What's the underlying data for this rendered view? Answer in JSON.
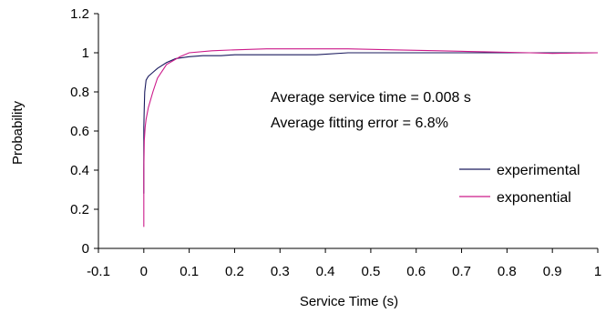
{
  "chart_data": {
    "type": "line",
    "title": "",
    "xlabel": "Service Time (s)",
    "ylabel": "Probability",
    "xlim": [
      -0.1,
      1.0
    ],
    "ylim": [
      0,
      1.2
    ],
    "x_ticks": [
      "-0.1",
      "0",
      "0.1",
      "0.2",
      "0.3",
      "0.4",
      "0.5",
      "0.6",
      "0.7",
      "0.8",
      "0.9",
      "1"
    ],
    "y_ticks": [
      "0",
      "0.2",
      "0.4",
      "0.6",
      "0.8",
      "1",
      "1.2"
    ],
    "grid": false,
    "legend_position": "right",
    "annotations": [
      "Average service time  = 0.008 s",
      "Average fitting error = 6.8%"
    ],
    "series": [
      {
        "name": "experimental",
        "color": "#1a1a5e",
        "x": [
          0.0,
          0.0,
          0.001,
          0.002,
          0.005,
          0.01,
          0.02,
          0.03,
          0.05,
          0.07,
          0.1,
          0.13,
          0.17,
          0.2,
          0.3,
          0.38,
          0.45,
          0.55,
          0.7,
          0.85,
          1.0
        ],
        "y": [
          0.28,
          0.62,
          0.72,
          0.8,
          0.86,
          0.88,
          0.9,
          0.92,
          0.95,
          0.97,
          0.98,
          0.985,
          0.985,
          0.99,
          0.99,
          0.99,
          1.0,
          1.0,
          1.0,
          1.0,
          1.0
        ]
      },
      {
        "name": "exponential",
        "color": "#cc1a8a",
        "x": [
          0.0,
          0.0,
          0.001,
          0.003,
          0.005,
          0.01,
          0.02,
          0.03,
          0.05,
          0.08,
          0.1,
          0.15,
          0.2,
          0.27,
          0.35,
          0.45,
          0.55,
          0.65,
          0.75,
          0.85,
          0.9,
          1.0
        ],
        "y": [
          0.11,
          0.4,
          0.55,
          0.62,
          0.66,
          0.72,
          0.8,
          0.87,
          0.94,
          0.98,
          1.0,
          1.01,
          1.015,
          1.02,
          1.02,
          1.02,
          1.015,
          1.01,
          1.005,
          1.0,
          0.997,
          1.0
        ]
      }
    ]
  }
}
